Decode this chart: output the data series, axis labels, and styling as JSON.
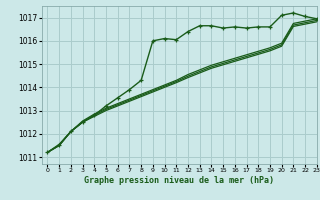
{
  "title": "Graphe pression niveau de la mer (hPa)",
  "background_color": "#cce8e8",
  "grid_color": "#aacccc",
  "line_color": "#1a5c1a",
  "xlim": [
    -0.5,
    23
  ],
  "ylim": [
    1010.7,
    1017.5
  ],
  "yticks": [
    1011,
    1012,
    1013,
    1014,
    1015,
    1016,
    1017
  ],
  "xticks": [
    0,
    1,
    2,
    3,
    4,
    5,
    6,
    7,
    8,
    9,
    10,
    11,
    12,
    13,
    14,
    15,
    16,
    17,
    18,
    19,
    20,
    21,
    22,
    23
  ],
  "lines": [
    {
      "x": [
        0,
        1,
        2,
        3,
        4,
        5,
        6,
        7,
        8,
        9,
        10,
        11,
        12,
        13,
        14,
        15,
        16,
        17,
        18,
        19,
        20,
        21,
        22,
        23
      ],
      "y": [
        1011.2,
        1011.5,
        1012.1,
        1012.5,
        1012.8,
        1013.2,
        1013.55,
        1013.9,
        1014.3,
        1016.0,
        1016.1,
        1016.05,
        1016.4,
        1016.65,
        1016.65,
        1016.55,
        1016.6,
        1016.55,
        1016.6,
        1016.6,
        1017.1,
        1017.2,
        1017.05,
        1016.95
      ],
      "marker": "+",
      "lw": 1.0
    },
    {
      "x": [
        0,
        1,
        2,
        3,
        4,
        5,
        6,
        7,
        8,
        9,
        10,
        11,
        12,
        13,
        14,
        15,
        16,
        17,
        18,
        19,
        20,
        21,
        22,
        23
      ],
      "y": [
        1011.2,
        1011.55,
        1012.1,
        1012.55,
        1012.85,
        1013.1,
        1013.3,
        1013.5,
        1013.7,
        1013.9,
        1014.1,
        1014.3,
        1014.55,
        1014.75,
        1014.95,
        1015.1,
        1015.25,
        1015.4,
        1015.55,
        1015.7,
        1015.9,
        1016.75,
        1016.85,
        1016.95
      ],
      "marker": null,
      "lw": 0.9
    },
    {
      "x": [
        0,
        1,
        2,
        3,
        4,
        5,
        6,
        7,
        8,
        9,
        10,
        11,
        12,
        13,
        14,
        15,
        16,
        17,
        18,
        19,
        20,
        21,
        22,
        23
      ],
      "y": [
        1011.2,
        1011.5,
        1012.1,
        1012.5,
        1012.8,
        1013.05,
        1013.25,
        1013.45,
        1013.65,
        1013.85,
        1014.05,
        1014.25,
        1014.48,
        1014.68,
        1014.88,
        1015.03,
        1015.18,
        1015.33,
        1015.48,
        1015.63,
        1015.83,
        1016.68,
        1016.78,
        1016.88
      ],
      "marker": null,
      "lw": 0.9
    },
    {
      "x": [
        0,
        1,
        2,
        3,
        4,
        5,
        6,
        7,
        8,
        9,
        10,
        11,
        12,
        13,
        14,
        15,
        16,
        17,
        18,
        19,
        20,
        21,
        22,
        23
      ],
      "y": [
        1011.2,
        1011.5,
        1012.1,
        1012.5,
        1012.75,
        1013.0,
        1013.2,
        1013.4,
        1013.6,
        1013.8,
        1014.0,
        1014.2,
        1014.42,
        1014.62,
        1014.82,
        1014.97,
        1015.12,
        1015.27,
        1015.42,
        1015.57,
        1015.77,
        1016.62,
        1016.72,
        1016.82
      ],
      "marker": null,
      "lw": 0.9
    }
  ]
}
